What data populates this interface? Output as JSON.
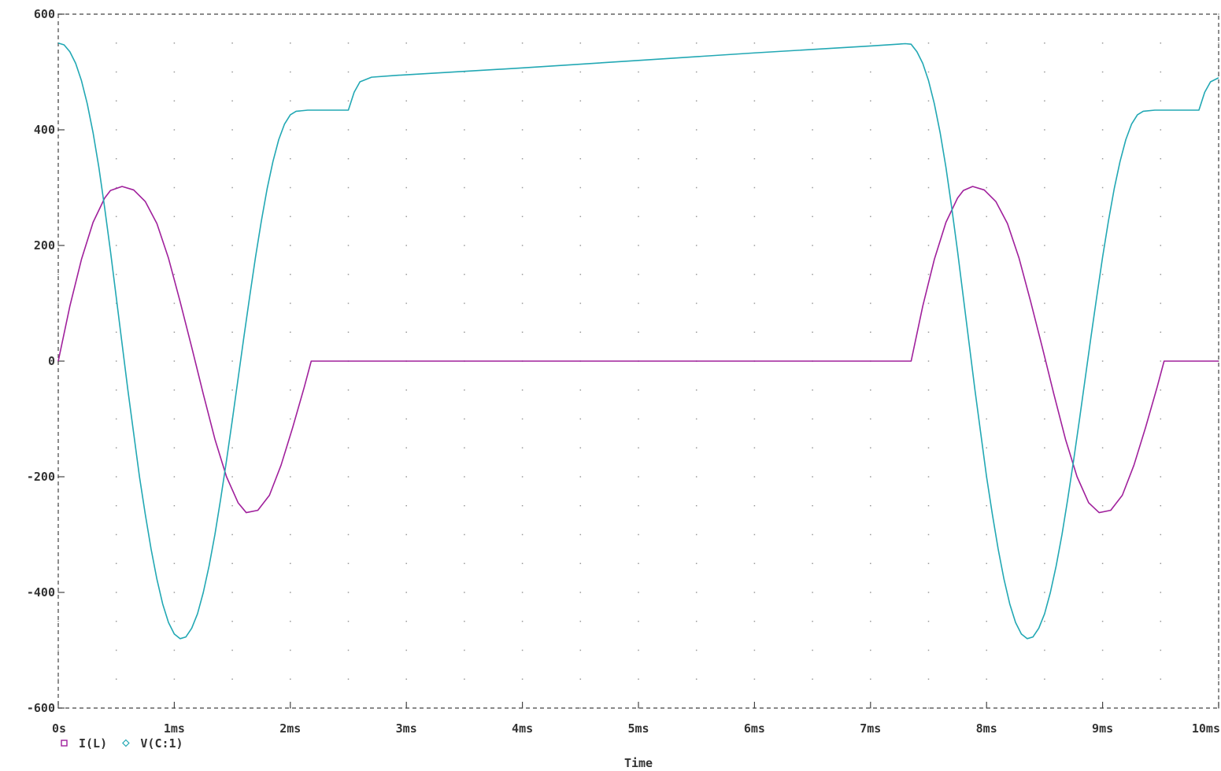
{
  "chart_data": {
    "type": "line",
    "xlabel": "Time",
    "ylabel": "",
    "xlim": [
      0,
      10
    ],
    "ylim": [
      -600,
      600
    ],
    "x_unit": "ms",
    "x_ticks": [
      0,
      1,
      2,
      3,
      4,
      5,
      6,
      7,
      8,
      9,
      10
    ],
    "x_tick_labels": [
      "0s",
      "1ms",
      "2ms",
      "3ms",
      "4ms",
      "5ms",
      "6ms",
      "7ms",
      "8ms",
      "9ms",
      "10ms"
    ],
    "y_ticks": [
      600,
      400,
      200,
      0,
      -200,
      -400,
      -600
    ],
    "y_tick_labels": [
      "600",
      "400",
      "200",
      "0",
      "-200",
      "-400",
      "-600"
    ],
    "grid": "dotted",
    "legend_position": "bottom-left",
    "series": [
      {
        "name": "I(L)",
        "marker": "square",
        "color": "#a0209c",
        "points": [
          [
            0,
            0
          ],
          [
            0.1,
            95
          ],
          [
            0.2,
            176
          ],
          [
            0.3,
            240
          ],
          [
            0.4,
            282
          ],
          [
            0.45,
            295
          ],
          [
            0.55,
            302
          ],
          [
            0.65,
            296
          ],
          [
            0.75,
            276
          ],
          [
            0.85,
            238
          ],
          [
            0.95,
            178
          ],
          [
            1.05,
            103
          ],
          [
            1.15,
            24
          ],
          [
            1.25,
            -57
          ],
          [
            1.35,
            -135
          ],
          [
            1.45,
            -200
          ],
          [
            1.55,
            -245
          ],
          [
            1.62,
            -262
          ],
          [
            1.72,
            -258
          ],
          [
            1.82,
            -232
          ],
          [
            1.92,
            -180
          ],
          [
            2.02,
            -115
          ],
          [
            2.12,
            -45
          ],
          [
            2.18,
            0
          ],
          [
            3,
            0
          ],
          [
            4,
            0
          ],
          [
            5,
            0
          ],
          [
            6,
            0
          ],
          [
            7,
            0
          ],
          [
            7.35,
            0
          ],
          [
            7.45,
            95
          ],
          [
            7.55,
            176
          ],
          [
            7.65,
            240
          ],
          [
            7.75,
            282
          ],
          [
            7.8,
            295
          ],
          [
            7.88,
            302
          ],
          [
            7.98,
            296
          ],
          [
            8.08,
            276
          ],
          [
            8.18,
            238
          ],
          [
            8.28,
            178
          ],
          [
            8.38,
            103
          ],
          [
            8.48,
            24
          ],
          [
            8.58,
            -57
          ],
          [
            8.68,
            -135
          ],
          [
            8.78,
            -200
          ],
          [
            8.88,
            -245
          ],
          [
            8.97,
            -262
          ],
          [
            9.07,
            -258
          ],
          [
            9.17,
            -232
          ],
          [
            9.27,
            -180
          ],
          [
            9.37,
            -115
          ],
          [
            9.47,
            -45
          ],
          [
            9.53,
            0
          ],
          [
            10,
            0
          ]
        ]
      },
      {
        "name": "V(C:1)",
        "marker": "diamond",
        "color": "#22a8b4",
        "points": [
          [
            0,
            550
          ],
          [
            0.05,
            547
          ],
          [
            0.1,
            535
          ],
          [
            0.15,
            515
          ],
          [
            0.2,
            485
          ],
          [
            0.25,
            445
          ],
          [
            0.3,
            395
          ],
          [
            0.35,
            335
          ],
          [
            0.4,
            265
          ],
          [
            0.45,
            190
          ],
          [
            0.5,
            110
          ],
          [
            0.55,
            30
          ],
          [
            0.6,
            -50
          ],
          [
            0.65,
            -125
          ],
          [
            0.7,
            -200
          ],
          [
            0.75,
            -265
          ],
          [
            0.8,
            -325
          ],
          [
            0.85,
            -377
          ],
          [
            0.9,
            -420
          ],
          [
            0.95,
            -452
          ],
          [
            1.0,
            -472
          ],
          [
            1.05,
            -480
          ],
          [
            1.1,
            -477
          ],
          [
            1.15,
            -462
          ],
          [
            1.2,
            -437
          ],
          [
            1.25,
            -400
          ],
          [
            1.3,
            -354
          ],
          [
            1.35,
            -300
          ],
          [
            1.4,
            -238
          ],
          [
            1.45,
            -172
          ],
          [
            1.5,
            -102
          ],
          [
            1.55,
            -30
          ],
          [
            1.6,
            42
          ],
          [
            1.65,
            112
          ],
          [
            1.7,
            180
          ],
          [
            1.75,
            242
          ],
          [
            1.8,
            298
          ],
          [
            1.85,
            345
          ],
          [
            1.9,
            383
          ],
          [
            1.95,
            410
          ],
          [
            2.0,
            426
          ],
          [
            2.05,
            432
          ],
          [
            2.15,
            434
          ],
          [
            2.5,
            434
          ],
          [
            2.55,
            465
          ],
          [
            2.6,
            483
          ],
          [
            2.7,
            491
          ],
          [
            2.9,
            494
          ],
          [
            4,
            507
          ],
          [
            5,
            520
          ],
          [
            6,
            533
          ],
          [
            7,
            545
          ],
          [
            7.3,
            549
          ],
          [
            7.35,
            548
          ],
          [
            7.4,
            535
          ],
          [
            7.45,
            515
          ],
          [
            7.5,
            485
          ],
          [
            7.55,
            445
          ],
          [
            7.6,
            395
          ],
          [
            7.65,
            335
          ],
          [
            7.7,
            265
          ],
          [
            7.75,
            190
          ],
          [
            7.8,
            110
          ],
          [
            7.85,
            30
          ],
          [
            7.9,
            -50
          ],
          [
            7.95,
            -125
          ],
          [
            8.0,
            -200
          ],
          [
            8.05,
            -265
          ],
          [
            8.1,
            -325
          ],
          [
            8.15,
            -377
          ],
          [
            8.2,
            -420
          ],
          [
            8.25,
            -452
          ],
          [
            8.3,
            -472
          ],
          [
            8.35,
            -480
          ],
          [
            8.4,
            -477
          ],
          [
            8.45,
            -462
          ],
          [
            8.5,
            -437
          ],
          [
            8.55,
            -400
          ],
          [
            8.6,
            -354
          ],
          [
            8.65,
            -300
          ],
          [
            8.7,
            -238
          ],
          [
            8.75,
            -172
          ],
          [
            8.8,
            -102
          ],
          [
            8.85,
            -30
          ],
          [
            8.9,
            42
          ],
          [
            8.95,
            112
          ],
          [
            9.0,
            180
          ],
          [
            9.05,
            242
          ],
          [
            9.1,
            298
          ],
          [
            9.15,
            345
          ],
          [
            9.2,
            383
          ],
          [
            9.25,
            410
          ],
          [
            9.3,
            426
          ],
          [
            9.35,
            432
          ],
          [
            9.45,
            434
          ],
          [
            9.83,
            434
          ],
          [
            9.88,
            465
          ],
          [
            9.93,
            483
          ],
          [
            10,
            490
          ]
        ]
      }
    ]
  }
}
